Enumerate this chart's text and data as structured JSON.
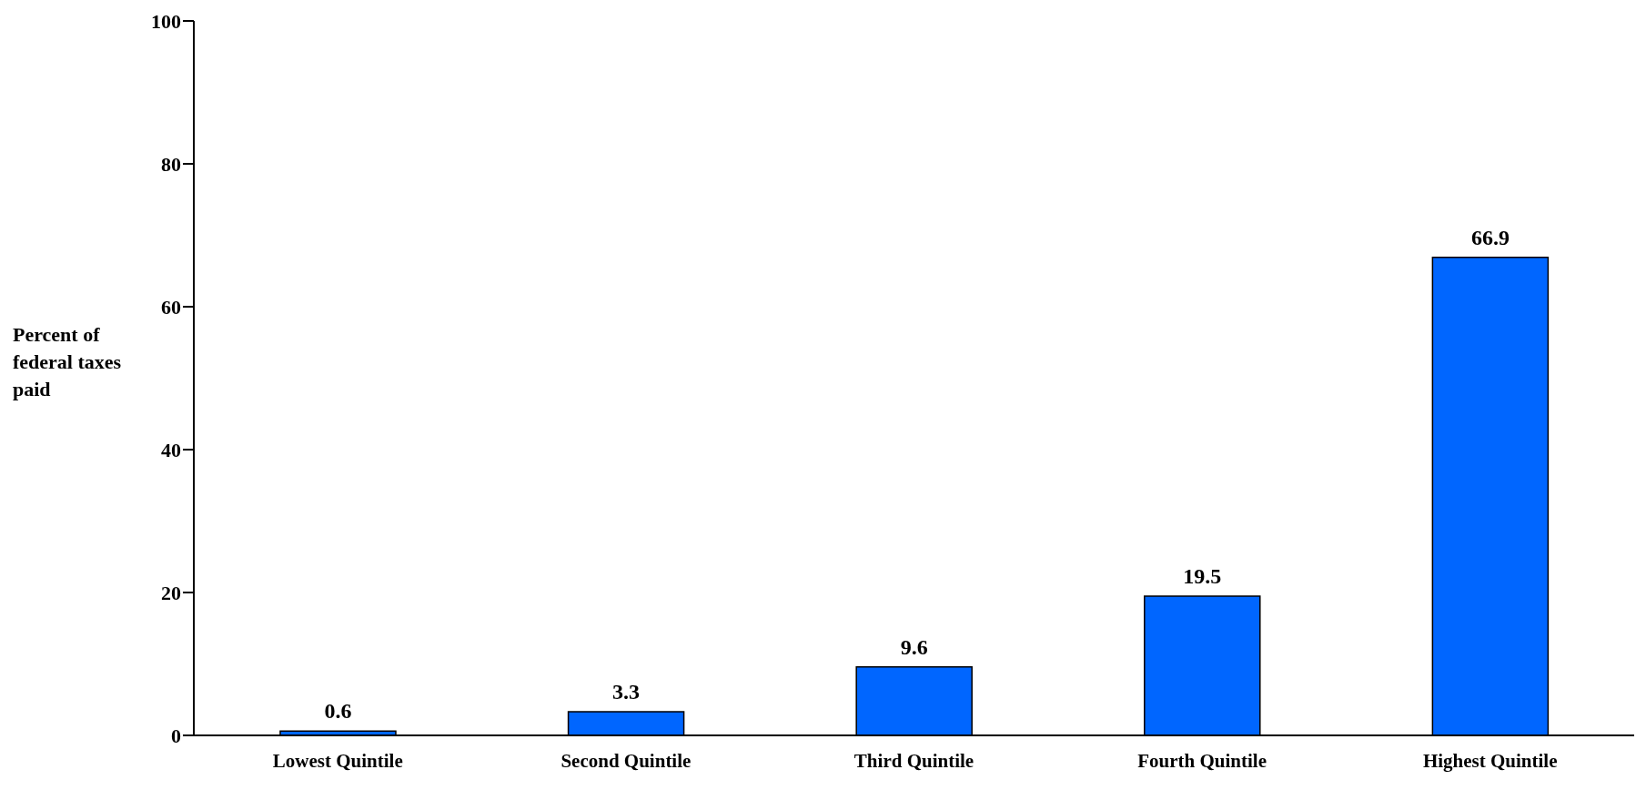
{
  "chart_data": {
    "type": "bar",
    "ylabel": "Percent of federal taxes paid",
    "categories": [
      "Lowest Quintile",
      "Second Quintile",
      "Third Quintile",
      "Fourth Quintile",
      "Highest Quintile"
    ],
    "values": [
      0.6,
      3.3,
      9.6,
      19.5,
      66.9
    ],
    "color": "#0066ff",
    "ylim": [
      0,
      100
    ],
    "yticks": [
      0,
      20,
      40,
      60,
      80,
      100
    ],
    "data_labels": true,
    "grid": false,
    "legend": false
  }
}
